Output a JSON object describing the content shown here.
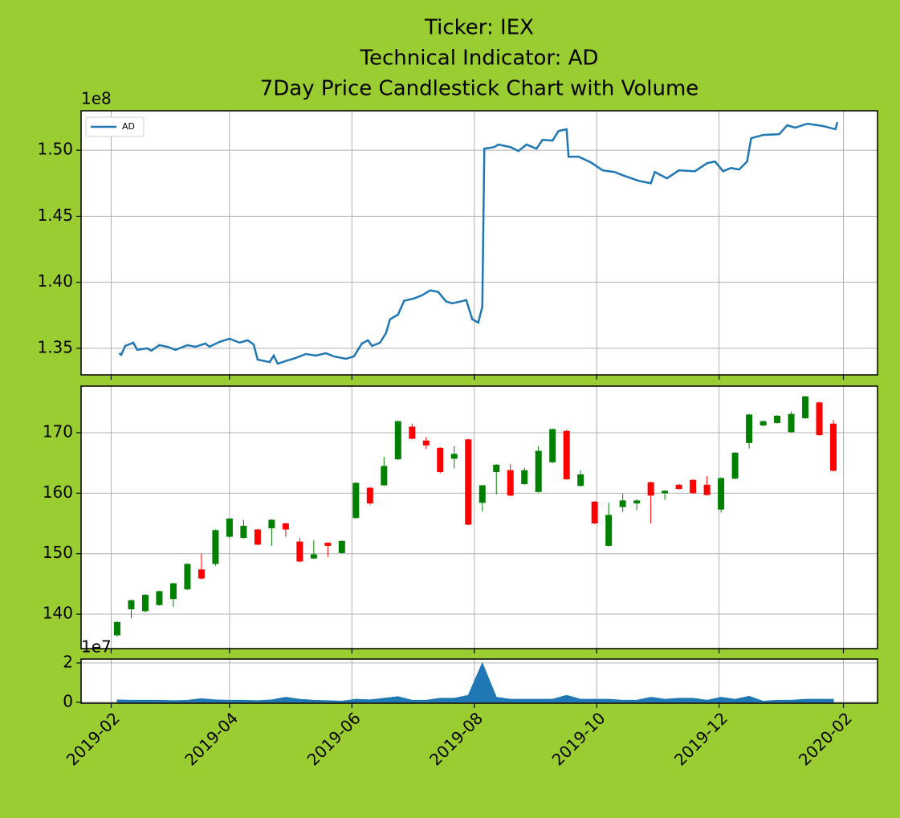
{
  "title": [
    "Ticker: IEX",
    "Technical Indicator: AD",
    "7Day Price Candlestick Chart with Volume"
  ],
  "xlim": [
    "2019-01-17",
    "2020-02-18"
  ],
  "xticks": [
    {
      "value": "2019-02-01",
      "label": "2019-02"
    },
    {
      "value": "2019-04-01",
      "label": "2019-04"
    },
    {
      "value": "2019-06-01",
      "label": "2019-06"
    },
    {
      "value": "2019-08-01",
      "label": "2019-08"
    },
    {
      "value": "2019-10-01",
      "label": "2019-10"
    },
    {
      "value": "2019-12-01",
      "label": "2019-12"
    },
    {
      "value": "2020-02-01",
      "label": "2020-02"
    }
  ],
  "grid": true,
  "chart_data": [
    {
      "type": "line",
      "offset_label": "1e8",
      "legend": "upper left",
      "ylim": [
        1.3299,
        1.5299
      ],
      "yticks": [
        1.35,
        {
          "value": 1.4,
          "label": "1.40"
        },
        1.45,
        {
          "value": 1.5,
          "label": "1.50"
        }
      ],
      "x": [
        "2019-02-05",
        "2019-02-06",
        "2019-02-08",
        "2019-02-12",
        "2019-02-14",
        "2019-02-19",
        "2019-02-21",
        "2019-02-25",
        "2019-03-01",
        "2019-03-05",
        "2019-03-11",
        "2019-03-15",
        "2019-03-20",
        "2019-03-22",
        "2019-03-27",
        "2019-04-01",
        "2019-04-06",
        "2019-04-10",
        "2019-04-13",
        "2019-04-15",
        "2019-04-21",
        "2019-04-23",
        "2019-04-25",
        "2019-04-30",
        "2019-05-04",
        "2019-05-09",
        "2019-05-14",
        "2019-05-19",
        "2019-05-23",
        "2019-05-29",
        "2019-06-02",
        "2019-06-06",
        "2019-06-09",
        "2019-06-11",
        "2019-06-15",
        "2019-06-18",
        "2019-06-20",
        "2019-06-24",
        "2019-06-27",
        "2019-07-02",
        "2019-07-06",
        "2019-07-10",
        "2019-07-14",
        "2019-07-18",
        "2019-07-21",
        "2019-07-25",
        "2019-07-28",
        "2019-07-31",
        "2019-08-03",
        "2019-08-05",
        "2019-08-06",
        "2019-08-11",
        "2019-08-13",
        "2019-08-19",
        "2019-08-23",
        "2019-08-27",
        "2019-09-01",
        "2019-09-04",
        "2019-09-09",
        "2019-09-12",
        "2019-09-16",
        "2019-09-17",
        "2019-09-22",
        "2019-09-28",
        "2019-10-04",
        "2019-10-10",
        "2019-10-14",
        "2019-10-22",
        "2019-10-28",
        "2019-10-30",
        "2019-11-05",
        "2019-11-11",
        "2019-11-19",
        "2019-11-25",
        "2019-11-29",
        "2019-12-03",
        "2019-12-07",
        "2019-12-11",
        "2019-12-15",
        "2019-12-17",
        "2019-12-23",
        "2019-12-31",
        "2020-01-04",
        "2020-01-08",
        "2020-01-14",
        "2020-01-22",
        "2020-01-28",
        "2020-01-29"
      ],
      "series": [
        {
          "name": "AD",
          "color": "#1f77b4",
          "values": [
            1.3463,
            1.3451,
            1.3518,
            1.3543,
            1.3488,
            1.35,
            1.3482,
            1.3524,
            1.3512,
            1.3488,
            1.3524,
            1.3512,
            1.3537,
            1.3512,
            1.3549,
            1.3573,
            1.3543,
            1.3561,
            1.353,
            1.3415,
            1.3396,
            1.3445,
            1.3384,
            1.3409,
            1.3427,
            1.3457,
            1.3445,
            1.3463,
            1.3439,
            1.3421,
            1.3439,
            1.3537,
            1.3561,
            1.3518,
            1.3543,
            1.3616,
            1.372,
            1.3756,
            1.386,
            1.3878,
            1.3902,
            1.3939,
            1.3927,
            1.3854,
            1.3841,
            1.3854,
            1.3866,
            1.372,
            1.3695,
            1.3817,
            1.5012,
            1.5024,
            1.5043,
            1.5024,
            1.4994,
            1.5043,
            1.5012,
            1.5079,
            1.5073,
            1.5146,
            1.5159,
            1.4951,
            1.4951,
            1.4909,
            1.4848,
            1.4835,
            1.4811,
            1.4768,
            1.475,
            1.4835,
            1.4787,
            1.4848,
            1.4841,
            1.4902,
            1.4915,
            1.4841,
            1.4866,
            1.4854,
            1.4915,
            1.5091,
            1.5116,
            1.5122,
            1.5189,
            1.5171,
            1.5201,
            1.5183,
            1.5159,
            1.5213
          ]
        }
      ]
    },
    {
      "type": "candlestick",
      "up_color": "green",
      "down_color": "red",
      "ylim": [
        134.3,
        177.7
      ],
      "yticks": [
        140,
        150,
        160,
        170
      ],
      "x": [
        "2019-02-04",
        "2019-02-11",
        "2019-02-18",
        "2019-02-25",
        "2019-03-04",
        "2019-03-11",
        "2019-03-18",
        "2019-03-25",
        "2019-04-01",
        "2019-04-08",
        "2019-04-15",
        "2019-04-22",
        "2019-04-29",
        "2019-05-06",
        "2019-05-13",
        "2019-05-20",
        "2019-05-27",
        "2019-06-03",
        "2019-06-10",
        "2019-06-17",
        "2019-06-24",
        "2019-07-01",
        "2019-07-08",
        "2019-07-15",
        "2019-07-22",
        "2019-07-29",
        "2019-08-05",
        "2019-08-12",
        "2019-08-19",
        "2019-08-26",
        "2019-09-02",
        "2019-09-09",
        "2019-09-16",
        "2019-09-23",
        "2019-09-30",
        "2019-10-07",
        "2019-10-14",
        "2019-10-21",
        "2019-10-28",
        "2019-11-04",
        "2019-11-11",
        "2019-11-18",
        "2019-11-25",
        "2019-12-02",
        "2019-12-09",
        "2019-12-16",
        "2019-12-23",
        "2019-12-30",
        "2020-01-06",
        "2020-01-13",
        "2020-01-20",
        "2020-01-27"
      ],
      "open": [
        136.5,
        140.8,
        140.5,
        141.5,
        142.5,
        144.1,
        147.4,
        148.3,
        152.8,
        152.6,
        154.0,
        154.2,
        155.0,
        152.0,
        149.2,
        151.8,
        150.1,
        155.9,
        160.9,
        161.3,
        165.6,
        171.0,
        168.7,
        167.5,
        165.7,
        168.9,
        158.4,
        163.5,
        163.8,
        161.5,
        160.2,
        165.1,
        170.3,
        161.2,
        158.6,
        151.3,
        157.7,
        158.3,
        161.8,
        160.0,
        161.4,
        162.2,
        161.4,
        157.3,
        162.4,
        168.3,
        171.2,
        171.6,
        170.1,
        172.4,
        175.0,
        171.5
      ],
      "high": [
        138.8,
        142.4,
        143.3,
        143.9,
        145.2,
        148.4,
        150.0,
        154.0,
        155.9,
        155.6,
        154.1,
        155.7,
        155.1,
        152.6,
        152.2,
        151.9,
        152.2,
        161.8,
        161.0,
        166.0,
        172.0,
        171.5,
        169.3,
        167.6,
        167.8,
        169.0,
        161.4,
        164.8,
        164.8,
        164.2,
        167.8,
        170.7,
        170.5,
        163.8,
        158.7,
        158.4,
        159.9,
        159.0,
        161.9,
        160.5,
        161.5,
        162.3,
        162.8,
        162.6,
        166.8,
        173.1,
        172.0,
        172.9,
        173.5,
        176.1,
        175.1,
        172.1
      ],
      "low": [
        136.3,
        139.3,
        140.3,
        141.4,
        141.2,
        144.0,
        145.7,
        148.0,
        152.6,
        152.5,
        151.4,
        151.3,
        152.8,
        148.6,
        149.1,
        149.5,
        150.0,
        155.8,
        158.1,
        161.2,
        165.5,
        168.9,
        167.3,
        163.3,
        164.1,
        154.7,
        157.0,
        159.8,
        159.5,
        161.4,
        160.1,
        165.0,
        162.2,
        161.1,
        154.9,
        151.2,
        156.9,
        157.2,
        155.0,
        158.9,
        160.6,
        159.9,
        159.6,
        156.8,
        162.3,
        167.4,
        171.1,
        171.5,
        170.0,
        172.3,
        169.5,
        163.6
      ],
      "close": [
        138.7,
        142.3,
        143.2,
        143.8,
        145.1,
        148.3,
        145.9,
        153.9,
        155.8,
        154.6,
        151.5,
        155.6,
        154.0,
        148.7,
        149.9,
        151.3,
        152.1,
        161.7,
        158.3,
        164.5,
        171.9,
        169.0,
        167.9,
        163.5,
        166.5,
        154.8,
        161.3,
        164.7,
        159.6,
        163.8,
        167.0,
        170.6,
        162.3,
        163.1,
        155.0,
        156.4,
        158.8,
        158.8,
        159.6,
        160.4,
        160.7,
        160.0,
        159.7,
        162.5,
        166.7,
        173.0,
        171.9,
        172.8,
        173.1,
        176.0,
        169.6,
        163.7
      ]
    },
    {
      "type": "area",
      "offset_label": "1e7",
      "color": "#1f77b4",
      "ylim": [
        -0.05,
        2.2
      ],
      "yticks": [
        0,
        2
      ],
      "x": [
        "2019-02-04",
        "2019-02-11",
        "2019-02-18",
        "2019-02-25",
        "2019-03-04",
        "2019-03-11",
        "2019-03-18",
        "2019-03-25",
        "2019-04-01",
        "2019-04-08",
        "2019-04-15",
        "2019-04-22",
        "2019-04-29",
        "2019-05-06",
        "2019-05-13",
        "2019-05-20",
        "2019-05-27",
        "2019-06-03",
        "2019-06-10",
        "2019-06-17",
        "2019-06-24",
        "2019-07-01",
        "2019-07-08",
        "2019-07-15",
        "2019-07-22",
        "2019-07-29",
        "2019-08-05",
        "2019-08-12",
        "2019-08-19",
        "2019-08-26",
        "2019-09-02",
        "2019-09-09",
        "2019-09-16",
        "2019-09-23",
        "2019-09-30",
        "2019-10-07",
        "2019-10-14",
        "2019-10-21",
        "2019-10-28",
        "2019-11-04",
        "2019-11-11",
        "2019-11-18",
        "2019-11-25",
        "2019-12-02",
        "2019-12-09",
        "2019-12-16",
        "2019-12-23",
        "2019-12-30",
        "2020-01-06",
        "2020-01-13",
        "2020-01-20",
        "2020-01-27"
      ],
      "values": [
        0.12,
        0.1,
        0.1,
        0.1,
        0.08,
        0.1,
        0.18,
        0.12,
        0.1,
        0.1,
        0.08,
        0.12,
        0.25,
        0.15,
        0.1,
        0.08,
        0.05,
        0.15,
        0.12,
        0.2,
        0.28,
        0.1,
        0.1,
        0.2,
        0.2,
        0.35,
        2.0,
        0.25,
        0.15,
        0.15,
        0.15,
        0.15,
        0.35,
        0.15,
        0.15,
        0.15,
        0.1,
        0.1,
        0.25,
        0.15,
        0.2,
        0.2,
        0.1,
        0.25,
        0.15,
        0.3,
        0.05,
        0.1,
        0.1,
        0.15,
        0.15,
        0.15
      ]
    }
  ]
}
